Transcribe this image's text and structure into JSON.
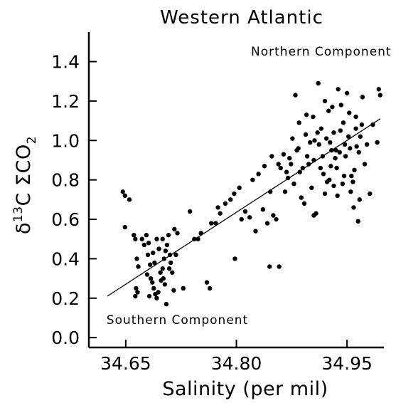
{
  "chart_data": {
    "type": "scatter",
    "title": "Western Atlantic",
    "xlabel": "Salinity (per mil)",
    "ylabel_main": "δ",
    "ylabel_sup": "13",
    "ylabel_rest": "C ΣCO",
    "ylabel_sub": "2",
    "xlim": [
      34.6,
      35.0
    ],
    "ylim": [
      -0.05,
      1.55
    ],
    "x_ticks": [
      34.65,
      34.8,
      34.95
    ],
    "x_tick_labels": [
      "34.65",
      "34.80",
      "34.95"
    ],
    "y_ticks": [
      0.0,
      0.2,
      0.4,
      0.6,
      0.8,
      1.0,
      1.2,
      1.4
    ],
    "y_tick_labels": [
      "0.0",
      "0.2",
      "0.4",
      "0.6",
      "0.8",
      "1.0",
      "1.2",
      "1.4"
    ],
    "grid": false,
    "annotations": [
      {
        "text": "Northern Component",
        "x": 34.915,
        "y": 1.43
      },
      {
        "text": "Southern Component",
        "x": 34.72,
        "y": 0.07
      }
    ],
    "regression_line": {
      "x": [
        34.625,
        34.995
      ],
      "y": [
        0.21,
        1.11
      ]
    },
    "series": [
      {
        "points": [
          [
            34.646,
            0.74
          ],
          [
            34.649,
            0.72
          ],
          [
            34.655,
            0.7
          ],
          [
            34.649,
            0.56
          ],
          [
            34.661,
            0.52
          ],
          [
            34.663,
            0.5
          ],
          [
            34.665,
            0.4
          ],
          [
            34.667,
            0.36
          ],
          [
            34.664,
            0.25
          ],
          [
            34.666,
            0.23
          ],
          [
            34.663,
            0.21
          ],
          [
            34.672,
            0.5
          ],
          [
            34.675,
            0.47
          ],
          [
            34.678,
            0.52
          ],
          [
            34.681,
            0.48
          ],
          [
            34.68,
            0.42
          ],
          [
            34.683,
            0.37
          ],
          [
            34.679,
            0.32
          ],
          [
            34.684,
            0.3
          ],
          [
            34.686,
            0.28
          ],
          [
            34.688,
            0.25
          ],
          [
            34.69,
            0.22
          ],
          [
            34.692,
            0.2
          ],
          [
            34.694,
            0.23
          ],
          [
            34.682,
            0.21
          ],
          [
            34.698,
            0.29
          ],
          [
            34.7,
            0.35
          ],
          [
            34.702,
            0.4
          ],
          [
            34.704,
            0.44
          ],
          [
            34.706,
            0.47
          ],
          [
            34.708,
            0.52
          ],
          [
            34.7,
            0.5
          ],
          [
            34.695,
            0.45
          ],
          [
            34.697,
            0.33
          ],
          [
            34.701,
            0.3
          ],
          [
            34.703,
            0.27
          ],
          [
            34.705,
            0.17
          ],
          [
            34.709,
            0.35
          ],
          [
            34.711,
            0.38
          ],
          [
            34.713,
            0.33
          ],
          [
            34.715,
            0.24
          ],
          [
            34.718,
            0.42
          ],
          [
            34.72,
            0.53
          ],
          [
            34.716,
            0.55
          ],
          [
            34.71,
            0.42
          ],
          [
            34.692,
            0.5
          ],
          [
            34.689,
            0.38
          ],
          [
            34.687,
            0.43
          ],
          [
            34.728,
            0.25
          ],
          [
            34.737,
            0.64
          ],
          [
            34.743,
            0.5
          ],
          [
            34.748,
            0.5
          ],
          [
            34.752,
            0.53
          ],
          [
            34.76,
            0.28
          ],
          [
            34.764,
            0.25
          ],
          [
            34.766,
            0.58
          ],
          [
            34.772,
            0.58
          ],
          [
            34.775,
            0.66
          ],
          [
            34.778,
            0.63
          ],
          [
            34.785,
            0.68
          ],
          [
            34.792,
            0.7
          ],
          [
            34.797,
            0.73
          ],
          [
            34.804,
            0.76
          ],
          [
            34.807,
            0.6
          ],
          [
            34.812,
            0.64
          ],
          [
            34.818,
            0.61
          ],
          [
            34.822,
            0.8
          ],
          [
            34.83,
            0.83
          ],
          [
            34.836,
            0.65
          ],
          [
            34.842,
            0.58
          ],
          [
            34.845,
            0.36
          ],
          [
            34.854,
            0.6
          ],
          [
            34.857,
            0.88
          ],
          [
            34.86,
            0.86
          ],
          [
            34.864,
            0.93
          ],
          [
            34.868,
            0.84
          ],
          [
            34.872,
            0.91
          ],
          [
            34.876,
            1.01
          ],
          [
            34.88,
            1.23
          ],
          [
            34.884,
            0.96
          ],
          [
            34.888,
            0.71
          ],
          [
            34.892,
            0.68
          ],
          [
            34.896,
            0.92
          ],
          [
            34.9,
            0.99
          ],
          [
            34.904,
            1.12
          ],
          [
            34.908,
            0.63
          ],
          [
            34.911,
            1.29
          ],
          [
            34.914,
            0.86
          ],
          [
            34.917,
            0.92
          ],
          [
            34.92,
            1.2
          ],
          [
            34.923,
            0.79
          ],
          [
            34.926,
            0.8
          ],
          [
            34.929,
            0.95
          ],
          [
            34.932,
            1.04
          ],
          [
            34.935,
            0.95
          ],
          [
            34.938,
            1.26
          ],
          [
            34.941,
            1.05
          ],
          [
            34.944,
            0.78
          ],
          [
            34.947,
            0.98
          ],
          [
            34.95,
            1.24
          ],
          [
            34.953,
            1.14
          ],
          [
            34.956,
            0.82
          ],
          [
            34.959,
            0.66
          ],
          [
            34.962,
            1.06
          ],
          [
            34.965,
            0.59
          ],
          [
            34.968,
            1.02
          ],
          [
            34.971,
            1.22
          ],
          [
            34.974,
            0.88
          ],
          [
            34.977,
            0.98
          ],
          [
            34.981,
            0.73
          ],
          [
            34.985,
            1.08
          ],
          [
            34.993,
            1.26
          ],
          [
            34.995,
            1.23
          ],
          [
            34.991,
            0.99
          ],
          [
            34.878,
            0.78
          ],
          [
            34.885,
            1.09
          ],
          [
            34.895,
            1.13
          ],
          [
            34.905,
            0.9
          ],
          [
            34.915,
            1.06
          ],
          [
            34.925,
            1.15
          ],
          [
            34.93,
            1.17
          ],
          [
            34.94,
            0.94
          ],
          [
            34.945,
            1.09
          ],
          [
            34.955,
            0.74
          ],
          [
            34.96,
            0.85
          ],
          [
            34.963,
            0.97
          ],
          [
            34.97,
            1.08
          ],
          [
            34.898,
            0.88
          ],
          [
            34.902,
            0.76
          ],
          [
            34.906,
            1.0
          ],
          [
            34.912,
            0.98
          ],
          [
            34.918,
            0.83
          ],
          [
            34.922,
            1.01
          ],
          [
            34.928,
            0.87
          ],
          [
            34.934,
            0.91
          ],
          [
            34.937,
            0.72
          ],
          [
            34.942,
            1.18
          ],
          [
            34.948,
            0.92
          ],
          [
            34.952,
            1.02
          ],
          [
            34.958,
            0.79
          ],
          [
            34.966,
            0.94
          ],
          [
            34.87,
            0.81
          ],
          [
            34.866,
            0.74
          ],
          [
            34.874,
            0.88
          ],
          [
            34.882,
            0.95
          ],
          [
            34.89,
            0.86
          ],
          [
            34.894,
            1.03
          ],
          [
            34.91,
            1.04
          ],
          [
            34.936,
            0.86
          ],
          [
            34.946,
            0.82
          ],
          [
            34.826,
            0.54
          ],
          [
            34.85,
            0.62
          ],
          [
            34.846,
            0.74
          ],
          [
            34.838,
            0.87
          ],
          [
            34.798,
            0.4
          ],
          [
            34.848,
            0.92
          ],
          [
            34.932,
            0.77
          ],
          [
            34.954,
            0.96
          ],
          [
            34.927,
            0.99
          ],
          [
            34.962,
            1.12
          ],
          [
            34.905,
            0.62
          ],
          [
            34.886,
            0.84
          ],
          [
            34.858,
            0.36
          ],
          [
            34.92,
            0.73
          ],
          [
            34.967,
            0.7
          ]
        ]
      }
    ]
  }
}
